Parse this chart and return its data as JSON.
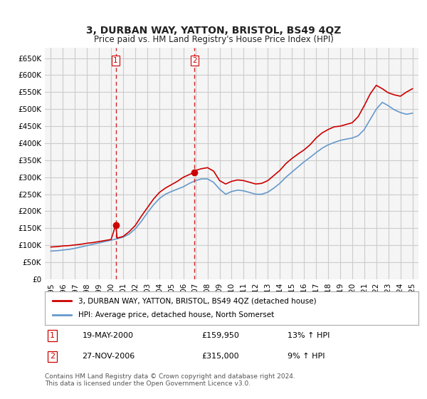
{
  "title": "3, DURBAN WAY, YATTON, BRISTOL, BS49 4QZ",
  "subtitle": "Price paid vs. HM Land Registry's House Price Index (HPI)",
  "ylabel_ticks": [
    0,
    50000,
    100000,
    150000,
    200000,
    250000,
    300000,
    350000,
    400000,
    450000,
    500000,
    550000,
    600000,
    650000
  ],
  "ylim": [
    0,
    680000
  ],
  "xlim_min": 1994.5,
  "xlim_max": 2025.5,
  "background_color": "#ffffff",
  "grid_color": "#cccccc",
  "line_color_red": "#cc0000",
  "line_color_blue": "#6699cc",
  "transaction_line_color": "#cc0000",
  "transactions": [
    {
      "label": 1,
      "year": 2000.38,
      "price": 159950,
      "date": "19-MAY-2000",
      "pct": "13%",
      "direction": "↑"
    },
    {
      "label": 2,
      "year": 2006.91,
      "price": 315000,
      "date": "27-NOV-2006",
      "pct": "9%",
      "direction": "↑"
    }
  ],
  "legend_label_red": "3, DURBAN WAY, YATTON, BRISTOL, BS49 4QZ (detached house)",
  "legend_label_blue": "HPI: Average price, detached house, North Somerset",
  "footer": "Contains HM Land Registry data © Crown copyright and database right 2024.\nThis data is licensed under the Open Government Licence v3.0.",
  "red_line": {
    "x": [
      1995.0,
      1995.5,
      1996.0,
      1996.5,
      1997.0,
      1997.5,
      1998.0,
      1998.5,
      1999.0,
      1999.5,
      2000.0,
      2000.38,
      2000.5,
      2001.0,
      2001.5,
      2002.0,
      2002.5,
      2003.0,
      2003.5,
      2004.0,
      2004.5,
      2005.0,
      2005.5,
      2006.0,
      2006.5,
      2006.91,
      2007.0,
      2007.5,
      2008.0,
      2008.5,
      2009.0,
      2009.5,
      2010.0,
      2010.5,
      2011.0,
      2011.5,
      2012.0,
      2012.5,
      2013.0,
      2013.5,
      2014.0,
      2014.5,
      2015.0,
      2015.5,
      2016.0,
      2016.5,
      2017.0,
      2017.5,
      2018.0,
      2018.5,
      2019.0,
      2019.5,
      2020.0,
      2020.5,
      2021.0,
      2021.5,
      2022.0,
      2022.5,
      2023.0,
      2023.5,
      2024.0,
      2024.5,
      2025.0
    ],
    "y": [
      95000,
      96000,
      98000,
      99000,
      101000,
      103000,
      106000,
      108000,
      111000,
      114000,
      117000,
      159950,
      121000,
      126000,
      140000,
      158000,
      185000,
      210000,
      235000,
      255000,
      268000,
      278000,
      288000,
      300000,
      308000,
      315000,
      320000,
      325000,
      328000,
      318000,
      290000,
      280000,
      288000,
      292000,
      290000,
      285000,
      280000,
      282000,
      290000,
      305000,
      320000,
      340000,
      355000,
      368000,
      380000,
      395000,
      415000,
      430000,
      440000,
      448000,
      450000,
      455000,
      460000,
      478000,
      510000,
      545000,
      570000,
      560000,
      548000,
      542000,
      538000,
      550000,
      560000
    ]
  },
  "blue_line": {
    "x": [
      1995.0,
      1995.5,
      1996.0,
      1996.5,
      1997.0,
      1997.5,
      1998.0,
      1998.5,
      1999.0,
      1999.5,
      2000.0,
      2000.5,
      2001.0,
      2001.5,
      2002.0,
      2002.5,
      2003.0,
      2003.5,
      2004.0,
      2004.5,
      2005.0,
      2005.5,
      2006.0,
      2006.5,
      2007.0,
      2007.5,
      2008.0,
      2008.5,
      2009.0,
      2009.5,
      2010.0,
      2010.5,
      2011.0,
      2011.5,
      2012.0,
      2012.5,
      2013.0,
      2013.5,
      2014.0,
      2014.5,
      2015.0,
      2015.5,
      2016.0,
      2016.5,
      2017.0,
      2017.5,
      2018.0,
      2018.5,
      2019.0,
      2019.5,
      2020.0,
      2020.5,
      2021.0,
      2021.5,
      2022.0,
      2022.5,
      2023.0,
      2023.5,
      2024.0,
      2024.5,
      2025.0
    ],
    "y": [
      83000,
      84000,
      86000,
      88000,
      91000,
      95000,
      99000,
      103000,
      107000,
      111000,
      115000,
      119000,
      124000,
      133000,
      148000,
      170000,
      195000,
      218000,
      237000,
      250000,
      258000,
      265000,
      272000,
      282000,
      290000,
      295000,
      295000,
      285000,
      265000,
      250000,
      258000,
      262000,
      260000,
      255000,
      250000,
      250000,
      256000,
      268000,
      282000,
      300000,
      315000,
      330000,
      345000,
      358000,
      372000,
      385000,
      395000,
      402000,
      408000,
      412000,
      415000,
      422000,
      440000,
      470000,
      500000,
      520000,
      510000,
      498000,
      490000,
      485000,
      488000
    ]
  },
  "x_tick_years": [
    1995,
    1996,
    1997,
    1998,
    1999,
    2000,
    2001,
    2002,
    2003,
    2004,
    2005,
    2006,
    2007,
    2008,
    2009,
    2010,
    2011,
    2012,
    2013,
    2014,
    2015,
    2016,
    2017,
    2018,
    2019,
    2020,
    2021,
    2022,
    2023,
    2024,
    2025
  ]
}
